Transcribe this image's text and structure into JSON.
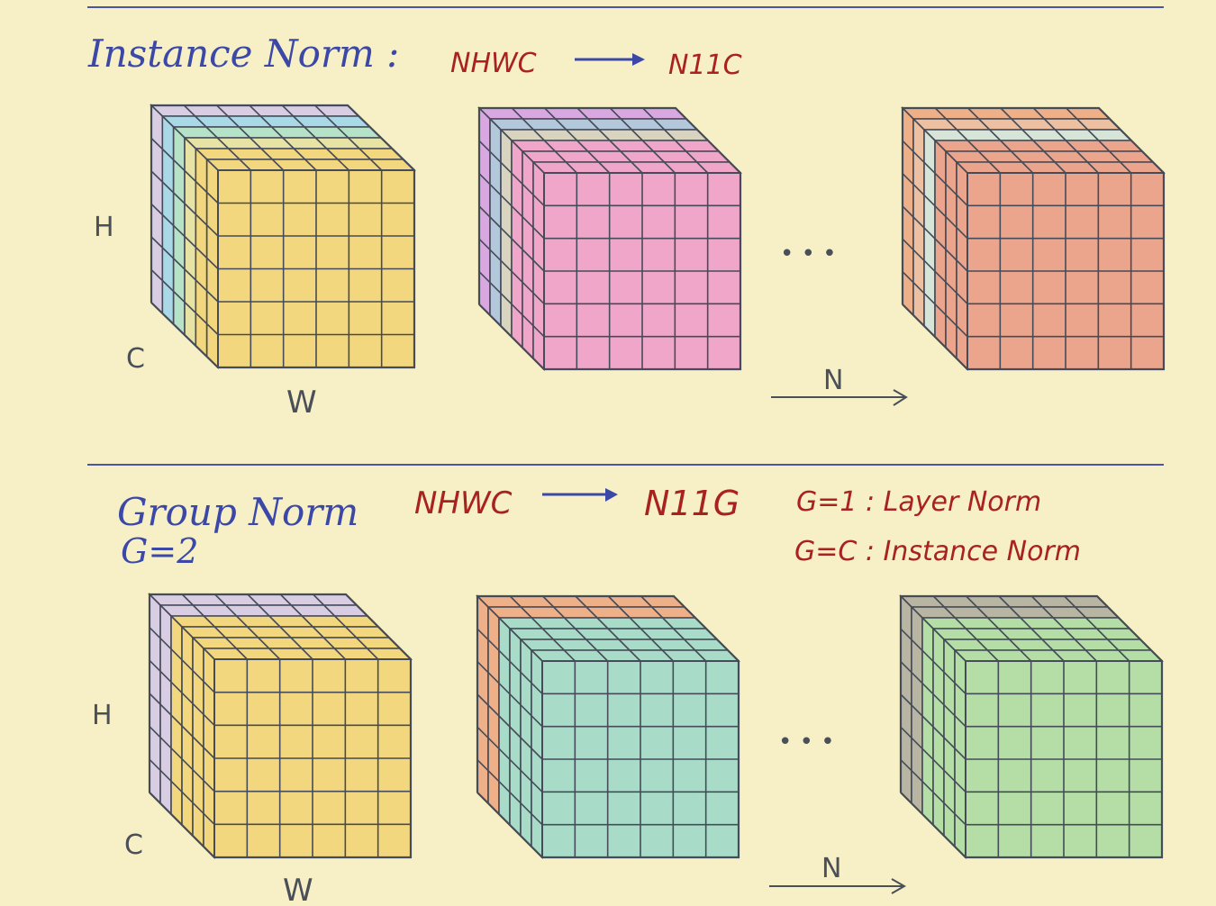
{
  "instance_norm": {
    "title": "Instance Norm :",
    "shape_from": "NHWC",
    "shape_to": "N11C",
    "axis_h": "H",
    "axis_c": "C",
    "axis_w": "W",
    "axis_n": "N",
    "ellipsis": "• • •"
  },
  "group_norm": {
    "title": "Group Norm",
    "groups": "G=2",
    "shape_from": "NHWC",
    "shape_to": "N11G",
    "note_layer": "G=1 : Layer Norm",
    "note_instance": "G=C : Instance Norm",
    "axis_h": "H",
    "axis_c": "C",
    "axis_w": "W",
    "axis_n": "N",
    "ellipsis": "• • •"
  },
  "colors": {
    "background": "#f7f0c6",
    "rule_line": "#4a55a8",
    "grid_line": "#454b58",
    "yellow": "#f2d77e",
    "pink": "#f0a6c8",
    "salmon": "#eba58c",
    "lavender": "#d8cde3",
    "teal": "#a8dcc8",
    "orange": "#eeb088",
    "gray": "#b8b6a2",
    "green": "#b4dea6"
  }
}
